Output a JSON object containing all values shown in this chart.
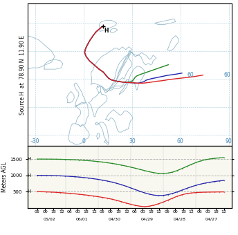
{
  "ylabel_map": "Source H  at  78.90 N  11.90 E",
  "ylabel_alt": "Meters AGL",
  "map_xlim": [
    -35,
    92
  ],
  "map_ylim": [
    36,
    87
  ],
  "grid_lons": [
    -30,
    0,
    30,
    60,
    90
  ],
  "grid_lats": [
    40,
    50,
    60,
    70,
    80
  ],
  "lon_labels": [
    "-30",
    "0",
    "30",
    "60",
    "90"
  ],
  "lat_labels": [
    "60"
  ],
  "lat_label_vals": [
    60
  ],
  "source_lon": 11.9,
  "source_lat": 78.9,
  "map_bg": "#ffffff",
  "coast_color": "#99bbcc",
  "coast_lw": 0.6,
  "gridline_color": "#aaccdd",
  "gridline_lw": 0.4,
  "gridline_style": "--",
  "trajectories": {
    "500m": {
      "color": "#dd2222",
      "lons": [
        11.9,
        11.0,
        9.5,
        7.5,
        5.8,
        4.0,
        2.5,
        1.2,
        0.5,
        1.5,
        3.5,
        6.5,
        9.5,
        12.0,
        13.5,
        14.5,
        15.5,
        17.0,
        19.5,
        22.5,
        25.5,
        28.5,
        31.5,
        33.5,
        35.0,
        36.5,
        38.5,
        41.0,
        43.5,
        45.5,
        47.5,
        50.0,
        53.0,
        56.0,
        59.0,
        62.0,
        65.0,
        68.0,
        70.0,
        72.0,
        74.0
      ],
      "lats": [
        78.9,
        78.5,
        77.8,
        76.8,
        75.5,
        74.0,
        72.5,
        71.0,
        69.5,
        68.0,
        66.5,
        65.0,
        63.5,
        62.5,
        61.5,
        60.8,
        60.2,
        59.7,
        59.3,
        59.0,
        58.8,
        58.7,
        58.6,
        58.5,
        58.5,
        58.5,
        58.6,
        58.8,
        59.0,
        59.2,
        59.3,
        59.5,
        59.8,
        60.0,
        60.2,
        60.4,
        60.6,
        60.8,
        61.0,
        61.2,
        61.4
      ],
      "alt": [
        500,
        498,
        494,
        488,
        480,
        470,
        460,
        448,
        435,
        420,
        405,
        388,
        368,
        348,
        325,
        300,
        270,
        235,
        195,
        155,
        115,
        80,
        55,
        40,
        55,
        85,
        130,
        180,
        240,
        300,
        360,
        405,
        440,
        460,
        472,
        480,
        485,
        488,
        490,
        492,
        493
      ]
    },
    "1000m": {
      "color": "#2222aa",
      "lons": [
        11.9,
        11.0,
        9.5,
        7.5,
        5.8,
        4.0,
        2.5,
        1.2,
        0.5,
        1.5,
        3.5,
        6.5,
        9.5,
        12.0,
        13.5,
        14.5,
        15.5,
        17.0,
        19.5,
        22.5,
        25.5,
        28.5,
        31.0,
        32.5,
        33.5,
        34.5,
        35.5,
        36.5,
        37.5,
        38.0,
        38.5,
        40.0,
        42.0,
        44.5,
        47.0,
        49.5,
        52.0,
        54.5,
        57.0,
        59.0,
        61.0
      ],
      "lats": [
        78.9,
        78.5,
        77.8,
        76.8,
        75.5,
        74.0,
        72.5,
        71.0,
        69.5,
        68.0,
        66.5,
        65.0,
        63.5,
        62.5,
        61.5,
        60.8,
        60.2,
        59.7,
        59.3,
        59.0,
        58.8,
        58.7,
        58.6,
        58.5,
        58.5,
        58.6,
        58.7,
        58.9,
        59.1,
        59.3,
        59.5,
        59.8,
        60.1,
        60.4,
        60.7,
        61.0,
        61.3,
        61.5,
        61.7,
        61.9,
        62.1
      ],
      "alt": [
        1000,
        999,
        997,
        994,
        990,
        985,
        978,
        970,
        960,
        948,
        934,
        918,
        899,
        878,
        854,
        827,
        795,
        758,
        716,
        669,
        618,
        565,
        513,
        465,
        424,
        395,
        382,
        386,
        408,
        445,
        494,
        547,
        600,
        650,
        694,
        732,
        764,
        790,
        812,
        830,
        845
      ]
    },
    "1500m": {
      "color": "#228822",
      "lons": [
        11.9,
        11.0,
        9.5,
        7.5,
        5.8,
        4.0,
        2.5,
        1.2,
        0.5,
        1.5,
        3.5,
        6.5,
        9.5,
        12.0,
        13.5,
        14.5,
        15.5,
        17.0,
        19.5,
        22.5,
        25.0,
        27.0,
        28.5,
        29.5,
        30.0,
        30.5,
        31.0,
        31.5,
        32.0,
        33.0,
        34.5,
        36.5,
        38.5,
        40.5,
        42.5,
        44.5,
        46.5,
        48.0,
        49.5,
        51.0,
        52.5
      ],
      "lats": [
        78.9,
        78.5,
        77.8,
        76.8,
        75.5,
        74.0,
        72.5,
        71.0,
        69.5,
        68.0,
        66.5,
        65.0,
        63.5,
        62.5,
        61.5,
        60.8,
        60.2,
        59.7,
        59.3,
        59.0,
        58.9,
        58.9,
        58.9,
        59.0,
        59.2,
        59.5,
        59.9,
        60.3,
        60.7,
        61.1,
        61.5,
        61.9,
        62.3,
        62.7,
        63.1,
        63.5,
        63.9,
        64.2,
        64.5,
        64.8,
        65.1
      ],
      "alt": [
        1500,
        1500,
        1499,
        1498,
        1496,
        1493,
        1489,
        1484,
        1478,
        1471,
        1462,
        1451,
        1439,
        1424,
        1408,
        1389,
        1368,
        1344,
        1317,
        1287,
        1255,
        1220,
        1184,
        1147,
        1112,
        1082,
        1062,
        1057,
        1070,
        1100,
        1148,
        1208,
        1272,
        1335,
        1393,
        1442,
        1480,
        1505,
        1522,
        1535,
        1544
      ]
    }
  },
  "alt_time_labels": [
    "06",
    "00",
    "18",
    "12",
    "06",
    "00",
    "18",
    "12",
    "06",
    "00",
    "18",
    "12",
    "06",
    "00",
    "18",
    "12",
    "06",
    "00",
    "18",
    "12",
    "06",
    "00",
    "18",
    "12"
  ],
  "alt_date_labels": [
    "05/02",
    "06/01",
    "04/30",
    "04/29",
    "04/28",
    "04/27"
  ],
  "alt_yticks": [
    500,
    1000,
    1500
  ],
  "alt_ylim": [
    0,
    1900
  ],
  "font_size": 5.5
}
